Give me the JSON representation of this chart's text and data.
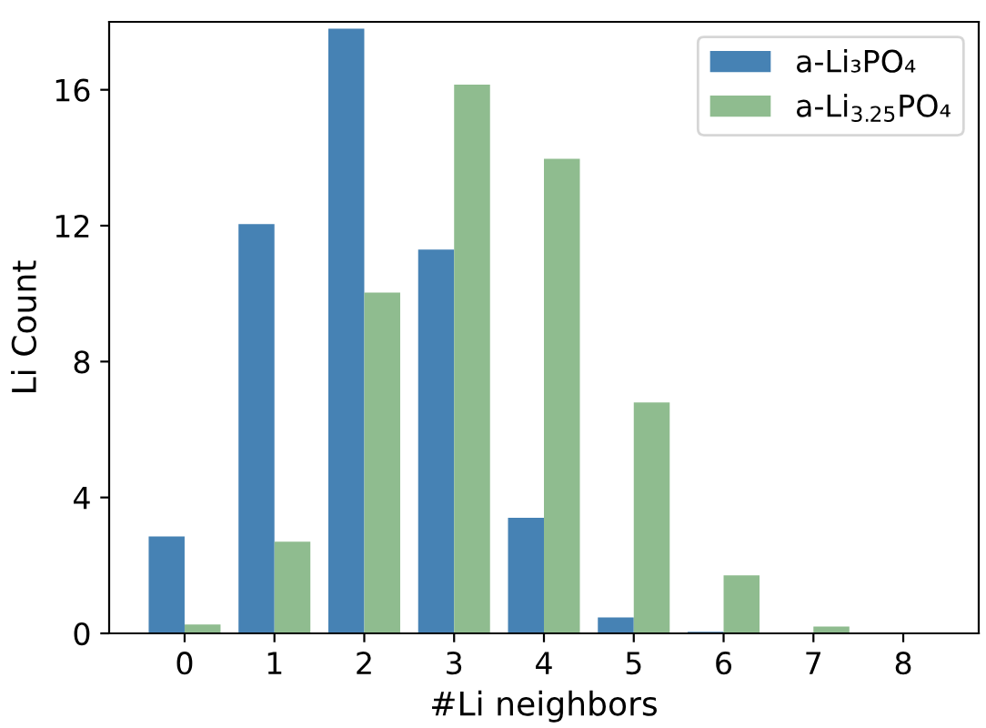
{
  "chart_data": {
    "type": "bar",
    "xlabel": "#Li neighbors",
    "ylabel": "Li Count",
    "categories": [
      "0",
      "1",
      "2",
      "3",
      "4",
      "5",
      "6",
      "7",
      "8"
    ],
    "series": [
      {
        "name": "a-Li₃PO₄",
        "color": "#4682b4",
        "values": [
          2.85,
          12.05,
          17.8,
          11.3,
          3.4,
          0.47,
          0.05,
          0,
          0
        ]
      },
      {
        "name": "a-Li$_{3.25}$PO₄",
        "color": "#8fbc8f",
        "values": [
          0.26,
          2.7,
          10.03,
          16.15,
          13.97,
          6.8,
          1.71,
          0.2,
          0
        ]
      }
    ],
    "ylim": [
      0,
      18
    ],
    "yticks": [
      0,
      4,
      8,
      12,
      16
    ],
    "grid": false,
    "legend": "top right"
  }
}
